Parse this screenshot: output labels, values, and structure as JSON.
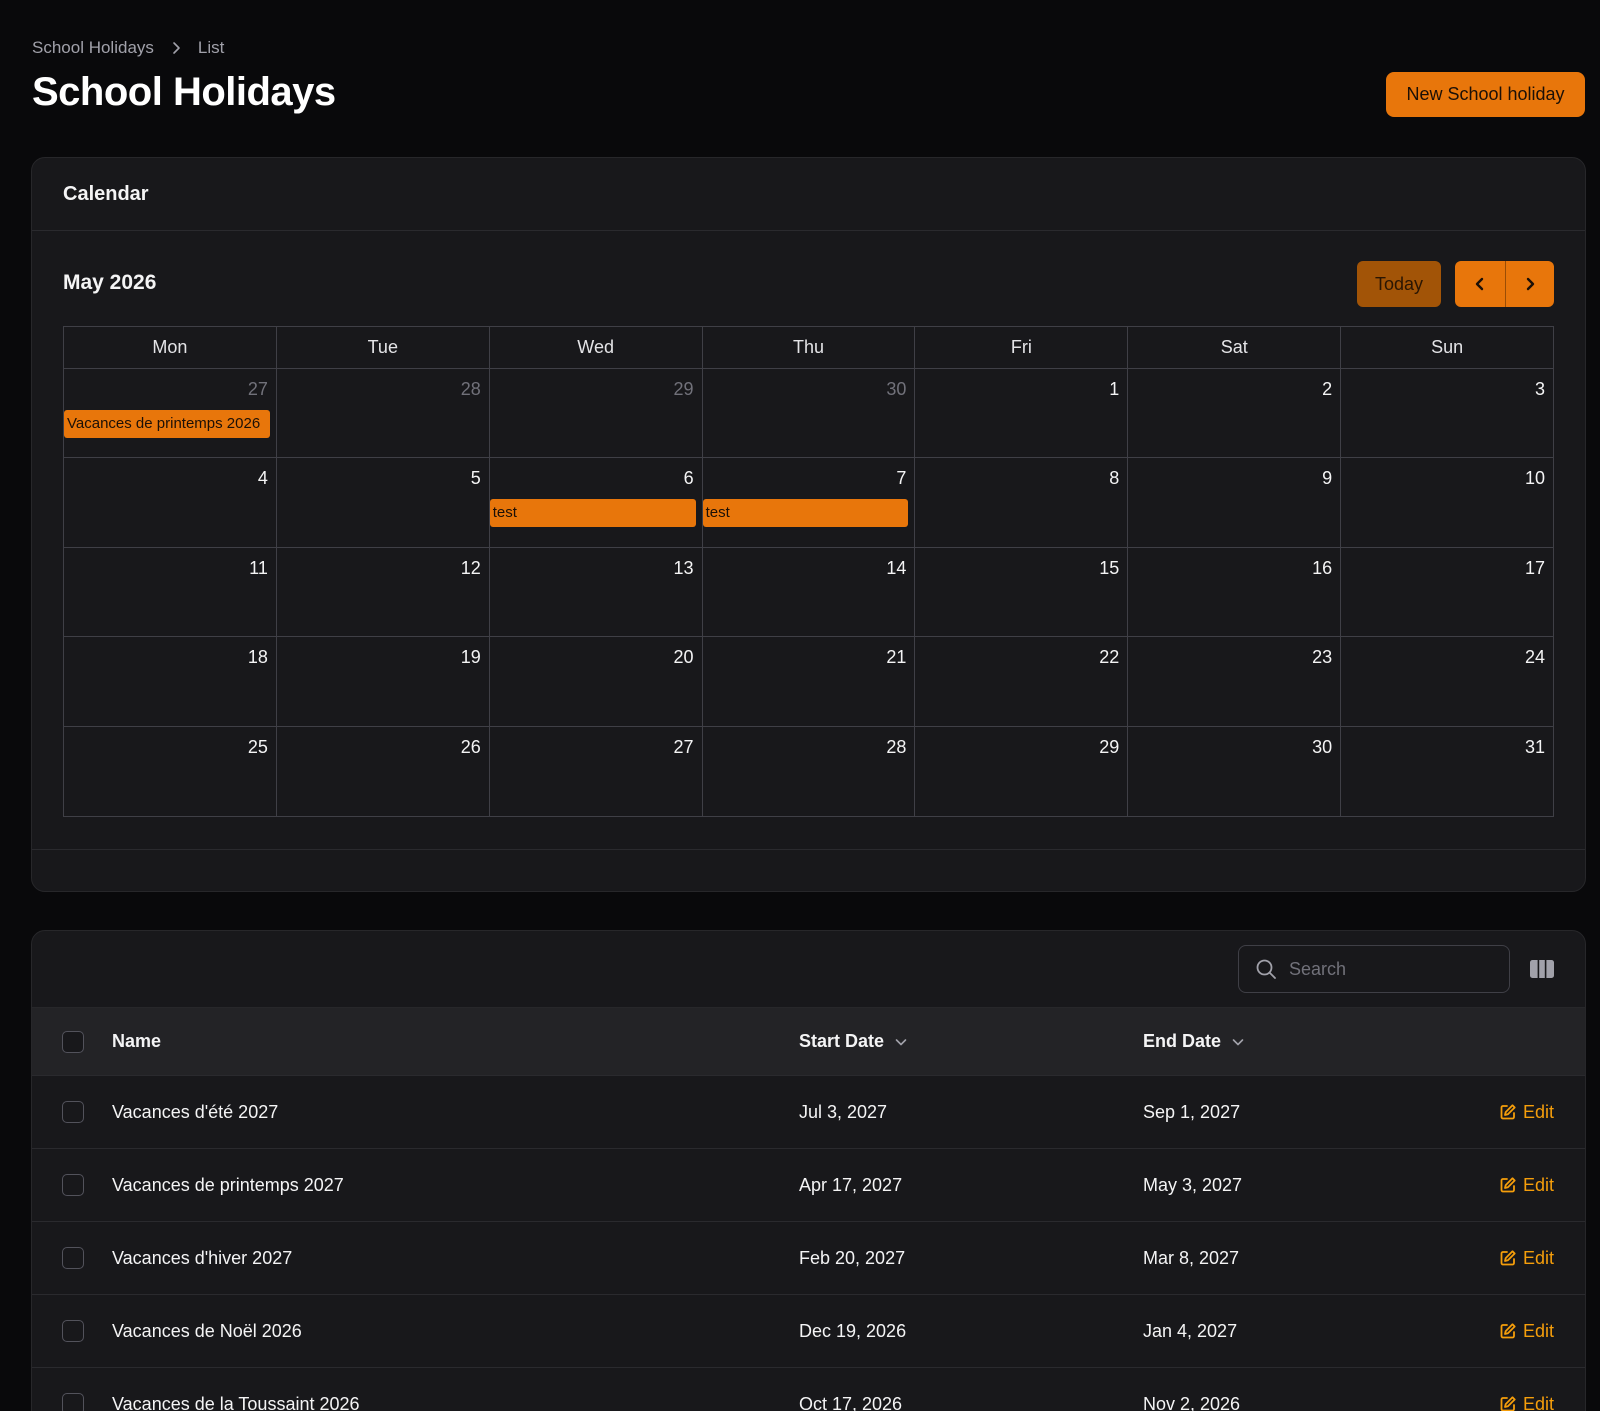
{
  "breadcrumb": {
    "parent": "School Holidays",
    "current": "List"
  },
  "page": {
    "title": "School Holidays",
    "new_button": "New School holiday"
  },
  "calendar": {
    "section_title": "Calendar",
    "month_title": "May 2026",
    "today_label": "Today",
    "weekdays": [
      "Mon",
      "Tue",
      "Wed",
      "Thu",
      "Fri",
      "Sat",
      "Sun"
    ],
    "weeks": [
      [
        "27",
        "28",
        "29",
        "30",
        "1",
        "2",
        "3"
      ],
      [
        "4",
        "5",
        "6",
        "7",
        "8",
        "9",
        "10"
      ],
      [
        "11",
        "12",
        "13",
        "14",
        "15",
        "16",
        "17"
      ],
      [
        "18",
        "19",
        "20",
        "21",
        "22",
        "23",
        "24"
      ],
      [
        "25",
        "26",
        "27",
        "28",
        "29",
        "30",
        "31"
      ]
    ],
    "events": {
      "vacances_printemps": "Vacances de printemps 2026",
      "test_wed": "test",
      "test_thu": "test"
    }
  },
  "table": {
    "search_placeholder": "Search",
    "headers": {
      "name": "Name",
      "start": "Start Date",
      "end": "End Date"
    },
    "edit_label": "Edit",
    "rows": [
      {
        "name": "Vacances d'été 2027",
        "start": "Jul 3, 2027",
        "end": "Sep 1, 2027"
      },
      {
        "name": "Vacances de printemps 2027",
        "start": "Apr 17, 2027",
        "end": "May 3, 2027"
      },
      {
        "name": "Vacances d'hiver 2027",
        "start": "Feb 20, 2027",
        "end": "Mar 8, 2027"
      },
      {
        "name": "Vacances de Noël 2026",
        "start": "Dec 19, 2026",
        "end": "Jan 4, 2027"
      },
      {
        "name": "Vacances de la Toussaint 2026",
        "start": "Oct 17, 2026",
        "end": "Nov 2, 2026"
      }
    ]
  },
  "colors": {
    "accent": "#e8760b",
    "edit": "#f59e0b",
    "background": "#09090b",
    "card": "#18181b"
  }
}
